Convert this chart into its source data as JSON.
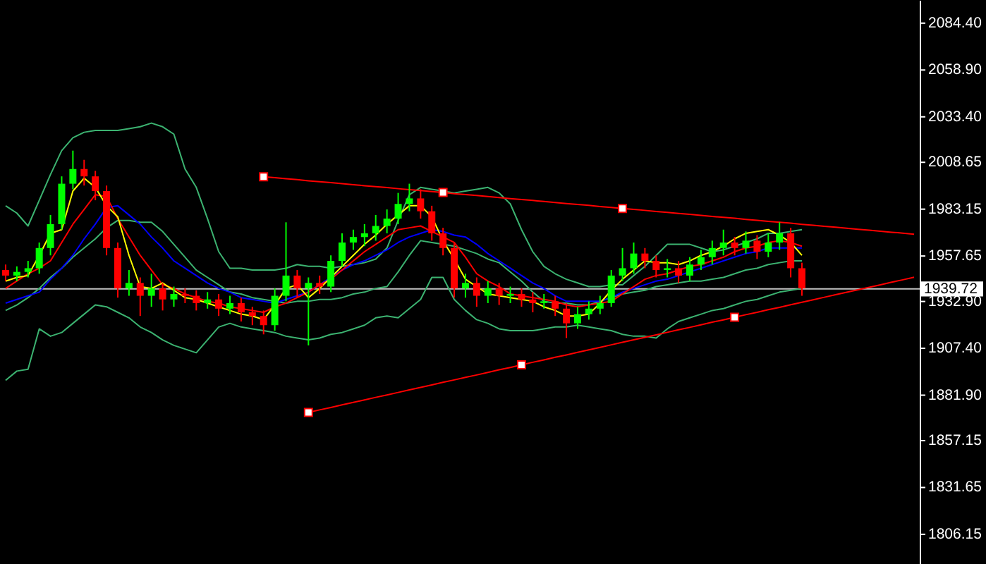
{
  "chart_data": {
    "type": "candlestick",
    "categories": [
      null,
      null,
      null,
      null,
      null,
      null,
      null,
      null,
      null,
      null,
      null,
      null,
      null,
      null,
      null,
      null,
      null,
      null,
      null,
      null,
      null,
      null,
      null,
      null,
      null,
      null,
      null,
      null,
      null,
      null,
      null,
      null,
      null,
      null,
      null,
      null,
      null,
      null,
      null,
      null,
      null,
      null,
      null,
      null,
      null,
      null,
      null,
      null,
      null,
      null,
      null,
      null,
      null,
      null,
      null,
      null,
      null,
      null,
      null,
      null,
      null,
      null,
      null,
      null,
      null,
      null,
      null,
      null,
      null,
      null,
      null,
      null,
      null,
      null,
      null,
      null,
      null,
      null,
      null,
      null,
      null,
      null
    ],
    "ohlc": [
      [
        1950,
        1953,
        1944,
        1947
      ],
      [
        1947,
        1952,
        1944,
        1949
      ],
      [
        1949,
        1955,
        1946,
        1951
      ],
      [
        1951,
        1965,
        1948,
        1962
      ],
      [
        1962,
        1980,
        1958,
        1975
      ],
      [
        1975,
        2001,
        1972,
        1997
      ],
      [
        1997,
        2015,
        1994,
        2005
      ],
      [
        2005,
        2010,
        1996,
        2001
      ],
      [
        2001,
        2004,
        1988,
        1993
      ],
      [
        1993,
        1996,
        1958,
        1962
      ],
      [
        1962,
        1965,
        1935,
        1940
      ],
      [
        1940,
        1950,
        1936,
        1943
      ],
      [
        1943,
        1946,
        1925,
        1936
      ],
      [
        1936,
        1948,
        1930,
        1940
      ],
      [
        1940,
        1943,
        1928,
        1934
      ],
      [
        1934,
        1941,
        1930,
        1937
      ],
      [
        1937,
        1940,
        1932,
        1936
      ],
      [
        1936,
        1939,
        1928,
        1932
      ],
      [
        1932,
        1938,
        1929,
        1934
      ],
      [
        1934,
        1937,
        1925,
        1929
      ],
      [
        1929,
        1936,
        1926,
        1932
      ],
      [
        1932,
        1935,
        1922,
        1927
      ],
      [
        1927,
        1930,
        1920,
        1925
      ],
      [
        1925,
        1928,
        1915,
        1920
      ],
      [
        1920,
        1940,
        1917,
        1936
      ],
      [
        1936,
        1976,
        1933,
        1947
      ],
      [
        1947,
        1950,
        1935,
        1940
      ],
      [
        1940,
        1946,
        1909,
        1943
      ],
      [
        1943,
        1947,
        1937,
        1941
      ],
      [
        1941,
        1958,
        1938,
        1955
      ],
      [
        1955,
        1970,
        1952,
        1965
      ],
      [
        1965,
        1972,
        1961,
        1968
      ],
      [
        1968,
        1975,
        1963,
        1970
      ],
      [
        1970,
        1980,
        1966,
        1974
      ],
      [
        1974,
        1983,
        1970,
        1978
      ],
      [
        1978,
        1992,
        1975,
        1986
      ],
      [
        1986,
        1997,
        1982,
        1989
      ],
      [
        1989,
        1994,
        1978,
        1982
      ],
      [
        1982,
        1985,
        1966,
        1970
      ],
      [
        1970,
        1973,
        1958,
        1962
      ],
      [
        1962,
        1965,
        1935,
        1940
      ],
      [
        1940,
        1948,
        1935,
        1943
      ],
      [
        1943,
        1946,
        1930,
        1936
      ],
      [
        1936,
        1944,
        1932,
        1940
      ],
      [
        1940,
        1943,
        1931,
        1936
      ],
      [
        1936,
        1941,
        1932,
        1937
      ],
      [
        1937,
        1940,
        1930,
        1934
      ],
      [
        1934,
        1938,
        1927,
        1932
      ],
      [
        1932,
        1937,
        1929,
        1933
      ],
      [
        1933,
        1936,
        1925,
        1929
      ],
      [
        1929,
        1932,
        1913,
        1921
      ],
      [
        1921,
        1930,
        1918,
        1926
      ],
      [
        1926,
        1933,
        1923,
        1929
      ],
      [
        1929,
        1936,
        1926,
        1932
      ],
      [
        1932,
        1950,
        1930,
        1947
      ],
      [
        1947,
        1962,
        1944,
        1951
      ],
      [
        1951,
        1965,
        1948,
        1959
      ],
      [
        1959,
        1962,
        1951,
        1955
      ],
      [
        1955,
        1958,
        1946,
        1950
      ],
      [
        1950,
        1956,
        1946,
        1951
      ],
      [
        1951,
        1955,
        1943,
        1947
      ],
      [
        1947,
        1957,
        1944,
        1953
      ],
      [
        1953,
        1961,
        1950,
        1957
      ],
      [
        1957,
        1966,
        1953,
        1962
      ],
      [
        1962,
        1972,
        1958,
        1965
      ],
      [
        1965,
        1968,
        1958,
        1962
      ],
      [
        1962,
        1971,
        1959,
        1966
      ],
      [
        1966,
        1969,
        1956,
        1960
      ],
      [
        1960,
        1970,
        1957,
        1965
      ],
      [
        1965,
        1976,
        1961,
        1970
      ],
      [
        1970,
        1973,
        1946,
        1951
      ],
      [
        1951,
        1954,
        1936,
        1940
      ],
      null,
      null,
      null,
      null,
      null,
      null,
      null,
      null,
      null,
      null
    ],
    "colors": [
      "#ff0000",
      "#00ff00",
      "#00ff00",
      "#00ff00",
      "#00ff00",
      "#00ff00",
      "#00ff00",
      "#ff0000",
      "#ff0000",
      "#ff0000",
      "#ff0000",
      "#00ff00",
      "#ff0000",
      "#00ff00",
      "#ff0000",
      "#00ff00",
      "#ff0000",
      "#ff0000",
      "#00ff00",
      "#ff0000",
      "#00ff00",
      "#ff0000",
      "#ff0000",
      "#ff0000",
      "#00ff00",
      "#00ff00",
      "#ff0000",
      "#00ff00",
      "#ff0000",
      "#00ff00",
      "#00ff00",
      "#00ff00",
      "#00ff00",
      "#00ff00",
      "#00ff00",
      "#00ff00",
      "#00ff00",
      "#ff0000",
      "#ff0000",
      "#ff0000",
      "#ff0000",
      "#00ff00",
      "#ff0000",
      "#00ff00",
      "#ff0000",
      "#00ff00",
      "#ff0000",
      "#ff0000",
      "#00ff00",
      "#ff0000",
      "#ff0000",
      "#00ff00",
      "#00ff00",
      "#00ff00",
      "#00ff00",
      "#00ff00",
      "#00ff00",
      "#ff0000",
      "#ff0000",
      "#00ff00",
      "#ff0000",
      "#00ff00",
      "#00ff00",
      "#00ff00",
      "#00ff00",
      "#ff0000",
      "#00ff00",
      "#ff0000",
      "#00ff00",
      "#00ff00",
      "#ff0000",
      "#ff0000",
      null,
      null,
      null,
      null,
      null,
      null,
      null,
      null,
      null,
      null
    ],
    "series": [
      {
        "type": "line",
        "color": "#3cb371",
        "values": [
          1985,
          1981,
          1974,
          1988,
          2002,
          2015,
          2022,
          2025,
          2026,
          2026,
          2026,
          2027,
          2028,
          2030,
          2028,
          2024,
          2005,
          1995,
          1978,
          1960,
          1951,
          1951,
          1950,
          1950,
          1950,
          1951,
          1953,
          1952,
          1952,
          1951,
          1952,
          1953,
          1954,
          1956,
          1962,
          1977,
          1991,
          1995,
          1994,
          1993,
          1992,
          1993,
          1994,
          1995,
          1992,
          1986,
          1972,
          1960,
          1952,
          1948,
          1945,
          1943,
          1941,
          1941,
          1942,
          1942,
          1947,
          1952,
          1958,
          1964,
          1964,
          1964,
          1962,
          1960,
          1961,
          1963,
          1965,
          1967,
          1970,
          1970,
          1971,
          1972,
          null,
          null,
          null,
          null,
          null,
          null,
          null,
          null,
          null,
          null
        ]
      },
      {
        "type": "line",
        "color": "#3cb371",
        "values": [
          1928,
          1931,
          1935,
          1940,
          1946,
          1951,
          1957,
          1962,
          1967,
          1973,
          1977,
          1977,
          1976,
          1976,
          1971,
          1964,
          1957,
          1950,
          1946,
          1942,
          1938,
          1937,
          1935,
          1934,
          1933,
          1932,
          1933,
          1933,
          1934,
          1934,
          1935,
          1937,
          1938,
          1940,
          1941,
          1949,
          1958,
          1966,
          1965,
          1964,
          1963,
          1961,
          1959,
          1956,
          1954,
          1949,
          1944,
          1938,
          1933,
          1932,
          1932,
          1931,
          1931,
          1933,
          1935,
          1937,
          1938,
          1939,
          1941,
          1942,
          1943,
          1944,
          1944,
          1945,
          1946,
          1948,
          1950,
          1951,
          1953,
          1954,
          1955,
          1955,
          null,
          null,
          null,
          null,
          null,
          null,
          null,
          null,
          null,
          null
        ]
      },
      {
        "type": "line",
        "color": "#3cb371",
        "values": [
          1890,
          1895,
          1896,
          1918,
          1914,
          1916,
          1921,
          1926,
          1931,
          1930,
          1927,
          1924,
          1919,
          1916,
          1912,
          1909,
          1907,
          1905,
          1912,
          1919,
          1921,
          1919,
          1918,
          1917,
          1916,
          1914,
          1913,
          1912,
          1913,
          1915,
          1916,
          1918,
          1920,
          1924,
          1925,
          1924,
          1929,
          1934,
          1946,
          1946,
          1934,
          1928,
          1923,
          1921,
          1918,
          1917,
          1917,
          1917,
          1918,
          1919,
          1919,
          1920,
          1919,
          1918,
          1917,
          1915,
          1914,
          1914,
          1913,
          1918,
          1922,
          1924,
          1926,
          1928,
          1929,
          1931,
          1933,
          1934,
          1936,
          1938,
          1939,
          1940,
          null,
          null,
          null,
          null,
          null,
          null,
          null,
          null,
          null,
          null
        ]
      },
      {
        "type": "line",
        "color": "#0000ff",
        "values": [
          1932,
          1934,
          1936,
          1938,
          1945,
          1951,
          1958,
          1967,
          1975,
          1984,
          1985,
          1980,
          1975,
          1968,
          1962,
          1955,
          1951,
          1947,
          1943,
          1940,
          1938,
          1935,
          1934,
          1933,
          1932,
          1934,
          1936,
          1938,
          1942,
          1946,
          1950,
          1953,
          1955,
          1958,
          1961,
          1965,
          1968,
          1970,
          1972,
          1971,
          1969,
          1968,
          1964,
          1959,
          1955,
          1951,
          1947,
          1943,
          1940,
          1936,
          1933,
          1933,
          1933,
          1933,
          1935,
          1938,
          1940,
          1942,
          1944,
          1945,
          1947,
          1949,
          1951,
          1953,
          1955,
          1957,
          1959,
          1960,
          1962,
          1962,
          1962,
          1962,
          null,
          null,
          null,
          null,
          null,
          null,
          null,
          null,
          null,
          null
        ]
      },
      {
        "type": "line",
        "color": "#ff0000",
        "values": [
          1940,
          1944,
          1948,
          1951,
          1955,
          1965,
          1975,
          1983,
          1991,
          1990,
          1978,
          1968,
          1958,
          1950,
          1942,
          1940,
          1937,
          1935,
          1933,
          1932,
          1930,
          1929,
          1928,
          1927,
          1930,
          1932,
          1935,
          1938,
          1942,
          1945,
          1950,
          1955,
          1960,
          1964,
          1968,
          1972,
          1973,
          1974,
          1971,
          1968,
          1965,
          1957,
          1948,
          1944,
          1941,
          1937,
          1936,
          1935,
          1934,
          1933,
          1931,
          1930,
          1931,
          1932,
          1933,
          1937,
          1941,
          1945,
          1947,
          1948,
          1950,
          1952,
          1953,
          1955,
          1957,
          1960,
          1962,
          1963,
          1965,
          1966,
          1965,
          1963,
          null,
          null,
          null,
          null,
          null,
          null,
          null,
          null,
          null,
          null
        ]
      },
      {
        "type": "line",
        "color": "#ffff00",
        "values": [
          1944,
          1946,
          1947,
          1958,
          1970,
          1972,
          1993,
          2000,
          1995,
          1985,
          1979,
          1958,
          1941,
          1940,
          1943,
          1939,
          1935,
          1934,
          1932,
          1930,
          1928,
          1926,
          1925,
          1923,
          1931,
          1940,
          1942,
          1935,
          1940,
          1946,
          1952,
          1958,
          1964,
          1969,
          1975,
          1980,
          1985,
          1985,
          1979,
          1966,
          1956,
          1945,
          1941,
          1937,
          1936,
          1935,
          1934,
          1933,
          1930,
          1928,
          1925,
          1925,
          1926,
          1932,
          1939,
          1945,
          1950,
          1955,
          1954,
          1954,
          1953,
          1955,
          1958,
          1960,
          1963,
          1967,
          1970,
          1971,
          1972,
          1969,
          1965,
          1958,
          null,
          null,
          null,
          null,
          null,
          null,
          null,
          null,
          null,
          null
        ]
      },
      {
        "type": "line",
        "color": "#ff0000",
        "values": [
          null,
          null,
          null,
          null,
          null,
          null,
          null,
          null,
          null,
          null,
          null,
          null,
          null,
          null,
          null,
          null,
          null,
          null,
          null,
          null,
          null,
          null,
          null,
          2000.8,
          2000.3,
          1999.7,
          1999.2,
          1998.6,
          1998.1,
          1997.6,
          1997.0,
          1996.5,
          1995.9,
          1995.4,
          1994.9,
          1994.3,
          1993.8,
          1993.3,
          1992.7,
          1992.2,
          1991.6,
          1991.1,
          1990.6,
          1990.0,
          1989.5,
          1988.9,
          1988.4,
          1987.9,
          1987.3,
          1986.8,
          1986.2,
          1985.7,
          1985.2,
          1984.6,
          1984.1,
          1983.5,
          1983.0,
          1982.5,
          1981.9,
          1981.4,
          1980.8,
          1980.3,
          1979.8,
          1979.2,
          1978.7,
          1978.2,
          1977.6,
          1977.1,
          1976.5,
          1976.0,
          1975.5,
          1974.9,
          1974.4,
          1973.8,
          1973.3,
          1972.8,
          1972.2,
          1971.7,
          1971.1,
          1970.6,
          1970.1,
          1969.5
        ]
      },
      {
        "type": "line",
        "color": "#ff0000",
        "values": [
          null,
          null,
          null,
          null,
          null,
          null,
          null,
          null,
          null,
          null,
          null,
          null,
          null,
          null,
          null,
          null,
          null,
          null,
          null,
          null,
          null,
          null,
          null,
          null,
          null,
          null,
          null,
          1872.5,
          1873.9,
          1875.2,
          1876.6,
          1878.0,
          1879.3,
          1880.7,
          1882.0,
          1883.4,
          1884.8,
          1886.1,
          1887.5,
          1888.9,
          1890.2,
          1891.6,
          1892.9,
          1894.3,
          1895.7,
          1897.0,
          1898.4,
          1899.8,
          1901.1,
          1902.5,
          1903.8,
          1905.2,
          1906.6,
          1907.9,
          1909.3,
          1910.7,
          1912.0,
          1913.4,
          1914.7,
          1916.1,
          1917.5,
          1918.8,
          1920.2,
          1921.6,
          1922.9,
          1924.3,
          1925.7,
          1927.0,
          1928.4,
          1929.7,
          1931.1,
          1932.5,
          1933.8,
          1935.2,
          1936.6,
          1937.9,
          1939.3,
          1940.6,
          1942.0,
          1943.4,
          1944.7,
          1946.1
        ]
      },
      {
        "type": "scatter",
        "marker": "square",
        "color": "#ffffff",
        "values": [
          null,
          null,
          null,
          null,
          null,
          null,
          null,
          null,
          null,
          null,
          null,
          null,
          null,
          null,
          null,
          null,
          null,
          null,
          null,
          null,
          null,
          null,
          null,
          2000.8,
          null,
          null,
          null,
          1872.5,
          null,
          null,
          null,
          null,
          null,
          null,
          null,
          null,
          null,
          null,
          null,
          1992.2,
          null,
          null,
          null,
          null,
          null,
          null,
          1898.4,
          null,
          null,
          null,
          null,
          null,
          null,
          null,
          null,
          1983.5,
          null,
          null,
          null,
          null,
          null,
          null,
          null,
          null,
          null,
          1924.3,
          null,
          null,
          null,
          null,
          null,
          null,
          null,
          null,
          null,
          null,
          null,
          null,
          null,
          null,
          null,
          null
        ]
      }
    ],
    "ylim": [
      1790,
      2097
    ],
    "yticks": [
      {
        "value": 2084.4,
        "label": "2084.40"
      },
      {
        "value": 2058.9,
        "label": "2058.90"
      },
      {
        "value": 2033.4,
        "label": "2033.40"
      },
      {
        "value": 2008.65,
        "label": "2008.65"
      },
      {
        "value": 1983.15,
        "label": "1983.15"
      },
      {
        "value": 1957.65,
        "label": "1957.65"
      },
      {
        "value": 1932.9,
        "label": "1932.90"
      },
      {
        "value": 1907.4,
        "label": "1907.40"
      },
      {
        "value": 1881.9,
        "label": "1881.90"
      },
      {
        "value": 1857.15,
        "label": "1857.15"
      },
      {
        "value": 1831.65,
        "label": "1831.65"
      },
      {
        "value": 1806.15,
        "label": "1806.15"
      }
    ],
    "ref_lines": [
      {
        "axis": "y",
        "value": 1939.72,
        "label": "1939.72",
        "color": "#c0c0c0"
      }
    ],
    "tick_labels": "y",
    "grid": false
  }
}
